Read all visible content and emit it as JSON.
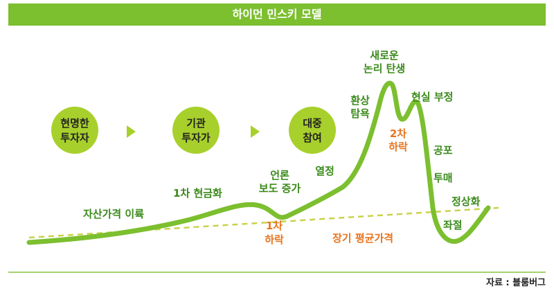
{
  "title": "하이먼 민스키 모델",
  "stages": [
    {
      "line1": "현명한",
      "line2": "투자자"
    },
    {
      "line1": "기관",
      "line2": "투자가"
    },
    {
      "line1": "대중",
      "line2": "참여"
    }
  ],
  "curve_labels": {
    "asset_rise": "자산가격 이륙",
    "first_boom": "1차 현금화",
    "media_1": "언론",
    "media_2": "보도 증가",
    "fervor": "열정",
    "greed_1": "환상",
    "greed_2": "탐욕",
    "new_1": "새로운",
    "new_2": "논리 탄생",
    "denial": "현실 부정",
    "fear": "공포",
    "dump": "투매",
    "normal": "정상화",
    "despair": "좌절"
  },
  "dip_labels": {
    "first_1": "1차",
    "first_2": "하락",
    "second_1": "2차",
    "second_2": "하락"
  },
  "avg_label": "장기 평균가격",
  "source": "자료 : 블룸버그",
  "colors": {
    "curve": "#7cbf2f",
    "label_green": "#3a8a1a",
    "label_orange": "#e8741c",
    "circle": "#a8d02c",
    "arrow": "#a8d02c",
    "dashed": "#c8d24a"
  }
}
